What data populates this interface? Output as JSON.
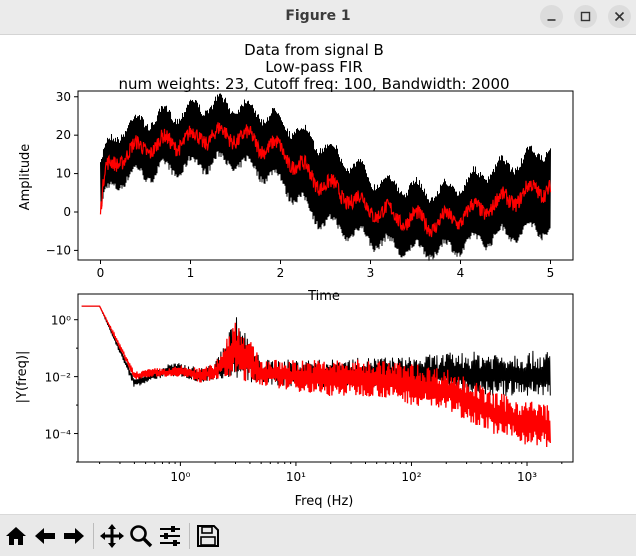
{
  "window": {
    "title": "Figure 1",
    "controls": [
      "minimize",
      "maximize",
      "close"
    ]
  },
  "figure": {
    "title_lines": [
      "Data from signal B",
      "Low-pass FIR",
      "num weights: 23, Cutoff freq: 100, Bandwidth: 2000"
    ]
  },
  "colors": {
    "raw": "#000000",
    "filtered": "#ff0000"
  },
  "chart_data": [
    {
      "type": "line",
      "title": "",
      "xlabel": "Time",
      "ylabel": "Amplitude",
      "xlim": [
        -0.25,
        5.25
      ],
      "ylim": [
        -12.5,
        31.5
      ],
      "xticks": [
        0,
        1,
        2,
        3,
        4,
        5
      ],
      "yticks": [
        -10,
        0,
        10,
        20,
        30
      ],
      "grid": false,
      "series": [
        {
          "color": "#000000",
          "style": "dense noisy band around the trend",
          "x": [
            0,
            0.05,
            0.25,
            0.5,
            0.75,
            1.0,
            1.25,
            1.5,
            1.75,
            2.0,
            2.25,
            2.5,
            2.75,
            3.0,
            3.25,
            3.5,
            3.75,
            4.0,
            4.25,
            4.5,
            4.75,
            5.0
          ],
          "y_upper": [
            13,
            17,
            23,
            25,
            26,
            28,
            29,
            29,
            27,
            25,
            21,
            18,
            14,
            10,
            8,
            7,
            6,
            8,
            11,
            13,
            15,
            18
          ],
          "y_lower": [
            -1,
            3,
            8,
            9,
            10,
            11,
            12,
            12,
            10,
            7,
            1,
            -4,
            -6,
            -8,
            -10,
            -11,
            -11,
            -10,
            -8,
            -7,
            -6,
            -5
          ]
        },
        {
          "color": "#ff0000",
          "style": "filtered signal with small oscillations",
          "x": [
            0,
            0.05,
            0.25,
            0.5,
            0.75,
            1.0,
            1.25,
            1.5,
            1.75,
            2.0,
            2.25,
            2.5,
            2.75,
            3.0,
            3.25,
            3.5,
            3.75,
            4.0,
            4.25,
            4.5,
            4.75,
            5.0
          ],
          "y": [
            0,
            10,
            15,
            17,
            18,
            19,
            20,
            20,
            18,
            16,
            11,
            7,
            4,
            1,
            -1,
            -2,
            -3,
            -1,
            1,
            3,
            5,
            7
          ]
        }
      ]
    },
    {
      "type": "line",
      "title": "",
      "xlabel": "Freq (Hz)",
      "ylabel": "|Y(freq)|",
      "xscale": "log",
      "yscale": "log",
      "xlim": [
        0.13,
        2500
      ],
      "ylim": [
        1e-05,
        8
      ],
      "xticks": [
        1,
        10,
        100,
        1000
      ],
      "xtick_labels": [
        "10⁰",
        "10¹",
        "10²",
        "10³"
      ],
      "yticks": [
        0.0001,
        0.01,
        1
      ],
      "ytick_labels": [
        "10⁻⁴",
        "10⁻²",
        "10⁰"
      ],
      "grid": false,
      "series": [
        {
          "color": "#000000",
          "x": [
            0.14,
            0.2,
            0.4,
            0.6,
            0.8,
            1.0,
            1.5,
            2.0,
            3.0,
            5,
            10,
            20,
            50,
            100,
            200,
            500,
            1000,
            1600
          ],
          "y_upper": [
            3,
            3,
            0.01,
            0.015,
            0.03,
            0.03,
            0.02,
            0.03,
            1.5,
            0.04,
            0.04,
            0.04,
            0.05,
            0.05,
            0.07,
            0.08,
            0.08,
            0.08
          ],
          "y_lower": [
            3,
            3,
            0.004,
            0.008,
            0.01,
            0.01,
            0.006,
            0.008,
            0.008,
            0.005,
            0.004,
            0.004,
            0.004,
            0.003,
            0.003,
            0.002,
            0.002,
            0.002
          ]
        },
        {
          "color": "#ff0000",
          "x": [
            0.14,
            0.2,
            0.4,
            0.6,
            0.8,
            1.0,
            1.5,
            2.0,
            3.0,
            5,
            10,
            20,
            50,
            100,
            200,
            300,
            500,
            800,
            1000,
            1600
          ],
          "y_upper": [
            3,
            3,
            0.015,
            0.02,
            0.02,
            0.025,
            0.02,
            0.03,
            1.5,
            0.04,
            0.04,
            0.04,
            0.04,
            0.03,
            0.02,
            0.01,
            0.003,
            0.002,
            0.0015,
            0.0012
          ],
          "y_lower": [
            3,
            3,
            0.008,
            0.01,
            0.01,
            0.01,
            0.006,
            0.008,
            0.008,
            0.005,
            0.003,
            0.002,
            0.002,
            0.001,
            0.0006,
            0.0003,
            0.0001,
            5e-05,
            4e-05,
            3e-05
          ]
        }
      ]
    }
  ],
  "toolbar": {
    "buttons": [
      "home-icon",
      "back-icon",
      "forward-icon",
      "pan-icon",
      "zoom-icon",
      "configure-subplots-icon",
      "save-icon"
    ]
  }
}
